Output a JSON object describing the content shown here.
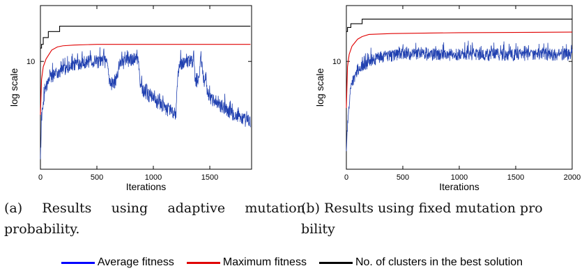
{
  "chart_data": [
    {
      "type": "line",
      "ylabel": "log scale",
      "xlabel": "Iterations",
      "y_scale": "log",
      "xlim": [
        0,
        1870
      ],
      "ylim": [
        1.2,
        30
      ],
      "xticks": [
        0,
        500,
        1000,
        1500
      ],
      "xtick_labels": [
        "0",
        "500",
        "1000",
        "1500"
      ],
      "yticks": [
        10
      ],
      "ytick_labels": [
        "10"
      ],
      "ytick_exponent_labels": [
        "1"
      ],
      "grid": false,
      "series": [
        {
          "name": "No. of clusters in the best solution",
          "color": "#000000",
          "style": "step",
          "x": [
            0,
            10,
            25,
            70,
            170,
            1860
          ],
          "y": [
            13,
            14,
            16,
            18,
            20,
            20
          ]
        },
        {
          "name": "Maximum fitness",
          "color": "#e00000",
          "style": "line",
          "x": [
            0,
            10,
            25,
            50,
            100,
            150,
            200,
            300,
            500,
            1860
          ],
          "y": [
            3.5,
            7.0,
            9.0,
            10.5,
            12.5,
            13.3,
            13.6,
            13.8,
            14.0,
            14.0
          ]
        },
        {
          "name": "Average fitness",
          "color": "#2040b0",
          "style": "noisy",
          "band": 0.13,
          "x": [
            0,
            15,
            50,
            100,
            200,
            300,
            400,
            590,
            610,
            660,
            700,
            800,
            870,
            880,
            920,
            1000,
            1100,
            1200,
            1220,
            1240,
            1300,
            1360,
            1370,
            1400,
            1420,
            1450,
            1500,
            1600,
            1700,
            1860
          ],
          "y": [
            1.5,
            3.5,
            6.0,
            7.5,
            8.5,
            9.5,
            10.0,
            10.0,
            6.5,
            6.5,
            9.5,
            10.5,
            10.5,
            6.5,
            5.5,
            4.8,
            4.0,
            3.6,
            8.0,
            9.5,
            10.0,
            10.0,
            6.5,
            7.0,
            10.0,
            7.0,
            4.8,
            4.2,
            3.6,
            3.0
          ]
        }
      ]
    },
    {
      "type": "line",
      "ylabel": "log scale",
      "xlabel": "Iterations",
      "y_scale": "log",
      "xlim": [
        0,
        2000
      ],
      "ylim": [
        1.2,
        30
      ],
      "xticks": [
        0,
        500,
        1000,
        1500,
        2000
      ],
      "xtick_labels": [
        "0",
        "500",
        "1000",
        "1500",
        "2000"
      ],
      "yticks": [
        10
      ],
      "ytick_labels": [
        "10"
      ],
      "ytick_exponent_labels": [
        "1"
      ],
      "grid": false,
      "series": [
        {
          "name": "No. of clusters in the best solution",
          "color": "#000000",
          "style": "step",
          "x": [
            0,
            10,
            40,
            140,
            2000
          ],
          "y": [
            18,
            19.5,
            21,
            23,
            23
          ]
        },
        {
          "name": "Maximum fitness",
          "color": "#e00000",
          "style": "line",
          "x": [
            0,
            10,
            25,
            50,
            100,
            140,
            200,
            400,
            1000,
            2000
          ],
          "y": [
            4.0,
            9.0,
            11.5,
            13.5,
            15.5,
            16.3,
            17.0,
            17.3,
            17.6,
            17.8
          ]
        },
        {
          "name": "Average fitness",
          "color": "#2040b0",
          "style": "noisy",
          "band": 0.12,
          "x": [
            0,
            15,
            50,
            100,
            200,
            300,
            500,
            1000,
            1500,
            2000
          ],
          "y": [
            1.5,
            3.5,
            6.5,
            8.5,
            10.0,
            11.0,
            11.5,
            11.5,
            11.5,
            11.5
          ]
        }
      ]
    }
  ],
  "captions": {
    "a": {
      "line1": "(a) Results using adaptive mutation",
      "line2": "probability."
    },
    "b": {
      "line1": "(b) Results using fixed mutation pro",
      "line2": "bility"
    }
  },
  "legend": [
    {
      "label": "Average fitness",
      "color": "#0000ff"
    },
    {
      "label": "Maximum fitness",
      "color": "#e00000"
    },
    {
      "label": "No. of clusters in the best solution",
      "color": "#000000"
    }
  ]
}
